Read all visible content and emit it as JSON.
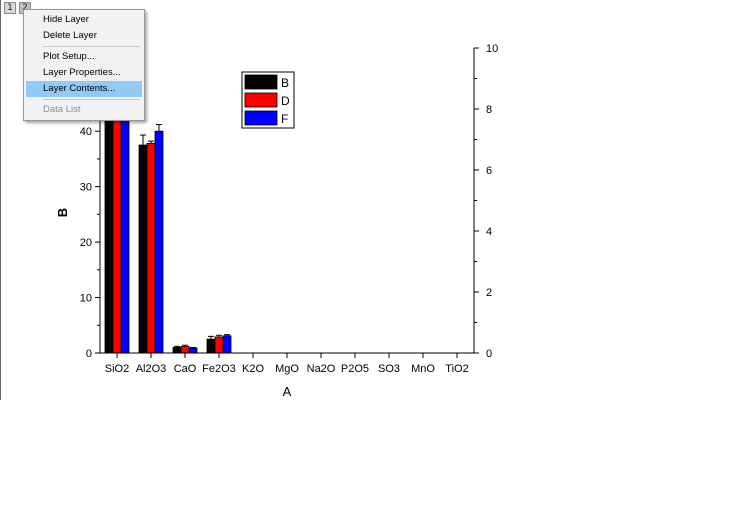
{
  "layer_buttons": [
    {
      "label": "1"
    },
    {
      "label": "2"
    }
  ],
  "context_menu": {
    "items": [
      {
        "label": "Hide Layer",
        "state": "normal"
      },
      {
        "label": "Delete Layer",
        "state": "normal"
      },
      {
        "separator": true
      },
      {
        "label": "Plot Setup...",
        "state": "normal"
      },
      {
        "label": "Layer Properties...",
        "state": "normal"
      },
      {
        "label": "Layer Contents...",
        "state": "highlighted"
      },
      {
        "separator": true
      },
      {
        "label": "Data List",
        "state": "disabled"
      }
    ]
  },
  "chart_data": {
    "type": "bar",
    "categories": [
      "SiO2",
      "Al2O3",
      "CaO",
      "Fe2O3",
      "K2O",
      "MgO",
      "Na2O",
      "P2O5",
      "SO3",
      "MnO",
      "TiO2"
    ],
    "series": [
      {
        "name": "B",
        "color": "#000000",
        "values": [
          48,
          37.5,
          1.0,
          2.5,
          0,
          0,
          0,
          0,
          0,
          0,
          0
        ],
        "errors": [
          1.5,
          1.8,
          0.2,
          0.5,
          0,
          0,
          0,
          0,
          0,
          0,
          0
        ]
      },
      {
        "name": "D",
        "color": "#ff0000",
        "values": [
          48,
          37.8,
          1.2,
          2.9,
          0,
          0,
          0,
          0,
          0,
          0,
          0
        ],
        "errors": [
          1.0,
          0.4,
          0.2,
          0.3,
          0,
          0,
          0,
          0,
          0,
          0,
          0
        ]
      },
      {
        "name": "F",
        "color": "#0000ff",
        "values": [
          48,
          40.0,
          0.9,
          3.1,
          0,
          0,
          0,
          0,
          0,
          0,
          0
        ],
        "errors": [
          1.5,
          1.2,
          0.1,
          0.2,
          0,
          0,
          0,
          0,
          0,
          0,
          0
        ]
      }
    ],
    "xlabel": "A",
    "ylabel": "B",
    "ylim": [
      0,
      55
    ],
    "y_ticks": [
      0,
      10,
      20,
      30,
      40
    ],
    "y2lim": [
      0,
      10
    ],
    "y2_ticks": [
      0,
      2,
      4,
      6,
      8,
      10
    ],
    "legend_position": "top-right",
    "grid": false
  }
}
